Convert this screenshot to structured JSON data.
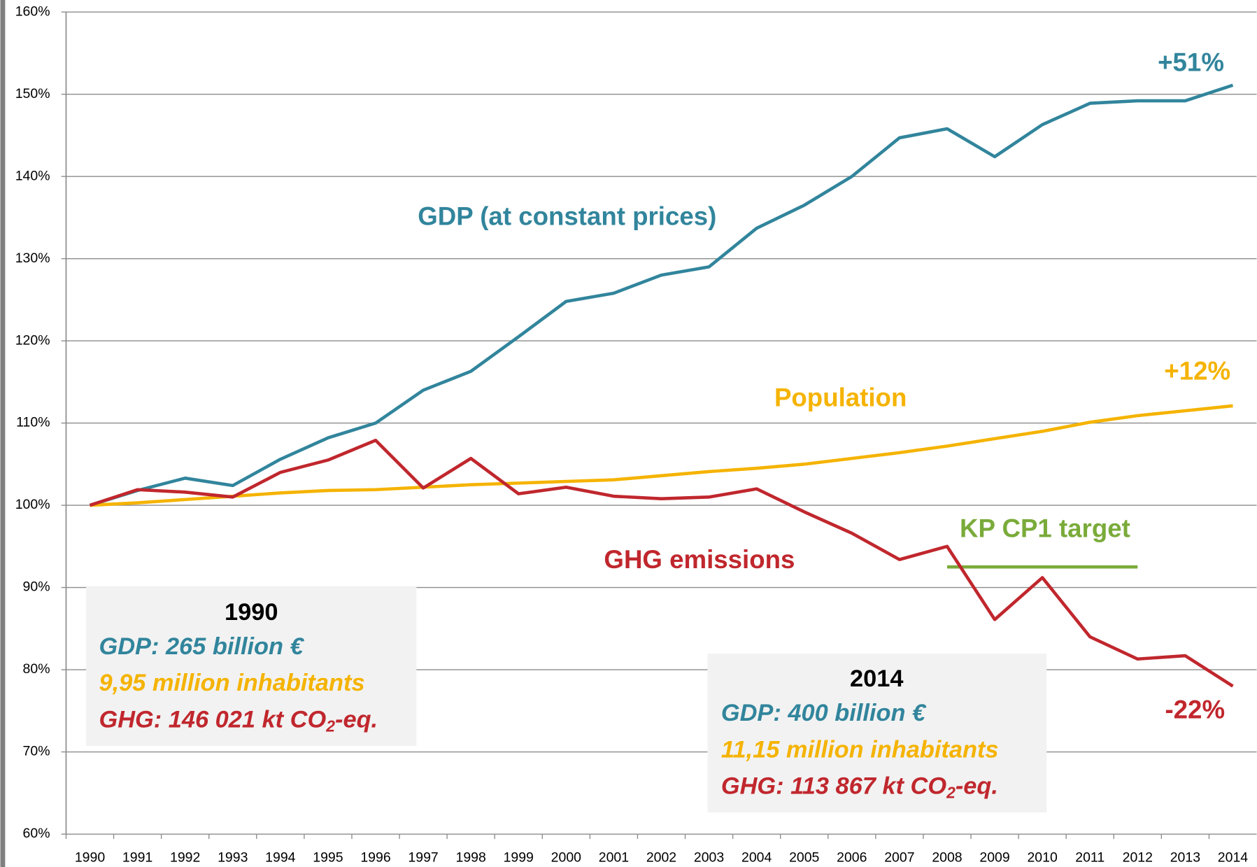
{
  "chart_data": {
    "type": "line",
    "categories": [
      "1990",
      "1991",
      "1992",
      "1993",
      "1994",
      "1995",
      "1996",
      "1997",
      "1998",
      "1999",
      "2000",
      "2001",
      "2002",
      "2003",
      "2004",
      "2005",
      "2006",
      "2007",
      "2008",
      "2009",
      "2010",
      "2011",
      "2012",
      "2013",
      "2014"
    ],
    "series": [
      {
        "name": "GDP (at constant prices)",
        "color": "#31859c",
        "end_label": "+51%",
        "values": [
          100,
          101.8,
          103.3,
          102.4,
          105.6,
          108.2,
          110,
          114,
          116.3,
          120.5,
          124.8,
          125.8,
          128,
          129,
          133.7,
          136.5,
          140,
          144.7,
          145.8,
          142.4,
          146.3,
          148.9,
          149.2,
          149.2,
          151.1
        ]
      },
      {
        "name": "Population",
        "color": "#f5b300",
        "end_label": "+12%",
        "values": [
          100,
          100.3,
          100.7,
          101.1,
          101.5,
          101.8,
          101.9,
          102.2,
          102.5,
          102.7,
          102.9,
          103.1,
          103.6,
          104.1,
          104.5,
          105,
          105.7,
          106.4,
          107.2,
          108.1,
          109,
          110.1,
          110.9,
          111.5,
          112.1
        ]
      },
      {
        "name": "GHG emissions",
        "color": "#c0272d",
        "end_label": "-22%",
        "values": [
          100,
          101.9,
          101.6,
          101.0,
          104.0,
          105.5,
          107.9,
          102.1,
          105.7,
          101.4,
          102.2,
          101.1,
          100.8,
          101.0,
          102.0,
          99.2,
          96.6,
          93.4,
          95.0,
          86.1,
          91.2,
          84.0,
          81.3,
          81.7,
          78.0
        ]
      }
    ],
    "target": {
      "label": "KP CP1 target",
      "color": "#7aab3a",
      "value": 92.5,
      "from": "2008",
      "to": "2012"
    },
    "ylim": [
      60,
      160
    ],
    "yticks": [
      {
        "value": 60,
        "label": "60%"
      },
      {
        "value": 70,
        "label": "70%"
      },
      {
        "value": 80,
        "label": "80%"
      },
      {
        "value": 90,
        "label": "90%"
      },
      {
        "value": 100,
        "label": "100%"
      },
      {
        "value": 110,
        "label": "110%"
      },
      {
        "value": 120,
        "label": "120%"
      },
      {
        "value": 130,
        "label": "130%"
      },
      {
        "value": 140,
        "label": "140%"
      },
      {
        "value": 150,
        "label": "150%"
      },
      {
        "value": 160,
        "label": "160%"
      }
    ],
    "grid": true,
    "boxes": [
      {
        "year": "1990",
        "lines": [
          [
            "GDP: 265 billion €"
          ],
          [
            "9,95 million inhabitants"
          ],
          [
            "GHG: 146 021 kt CO",
            "2",
            "-eq."
          ]
        ]
      },
      {
        "year": "2014",
        "lines": [
          [
            "GDP: 400  billion €"
          ],
          [
            "11,15 million inhabitants"
          ],
          [
            "GHG: 113 867 kt CO",
            "2",
            "-eq."
          ]
        ]
      }
    ]
  }
}
